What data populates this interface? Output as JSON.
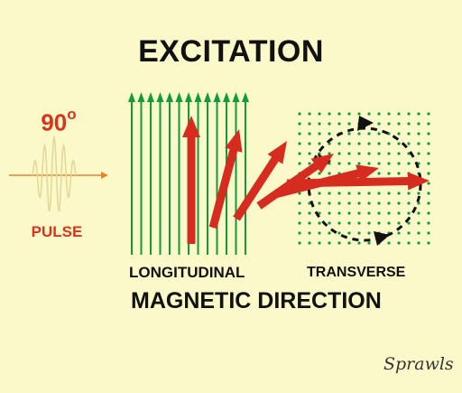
{
  "title": "EXCITATION",
  "pulse": {
    "angle": "90",
    "degree_symbol": "o",
    "label": "PULSE"
  },
  "labels": {
    "longitudinal": "LONGITUDINAL",
    "transverse": "TRANSVERSE",
    "magnetic_direction": "MAGNETIC DIRECTION"
  },
  "signature": "Sprawls",
  "colors": {
    "background": "#fbf8c9",
    "field_lines": "#129a3e",
    "magnetization_arrows": "#d62c1f",
    "pulse_wave": "#e3d99a",
    "pulse_axis": "#e8832a",
    "text": "#111111",
    "pulse_text": "#d8351c"
  }
}
